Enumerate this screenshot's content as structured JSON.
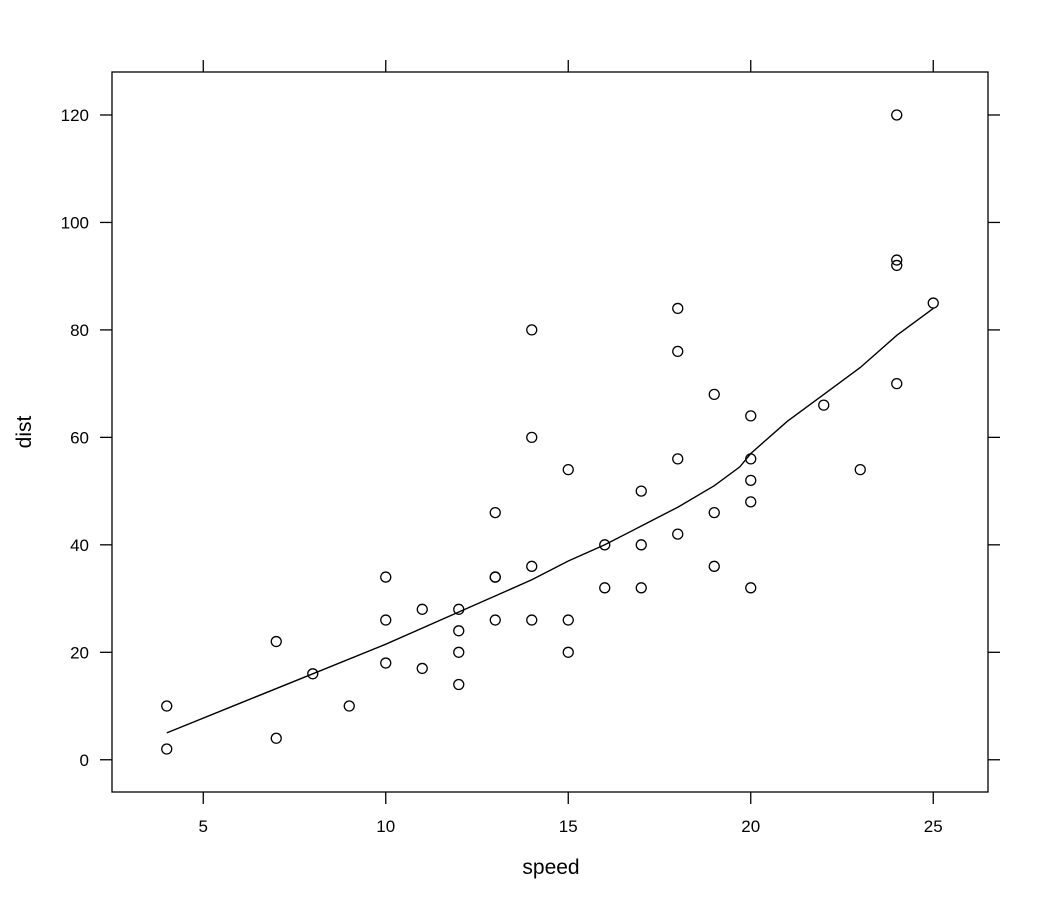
{
  "chart_data": {
    "type": "scatter",
    "title": "",
    "xlabel": "speed",
    "ylabel": "dist",
    "xlim": [
      2.5,
      26.5
    ],
    "ylim": [
      -6,
      128
    ],
    "x_ticks": [
      5,
      10,
      15,
      20,
      25
    ],
    "y_ticks": [
      0,
      20,
      40,
      60,
      80,
      100,
      120
    ],
    "x_tick_labels": [
      "5",
      "10",
      "15",
      "20",
      "25"
    ],
    "y_tick_labels": [
      "0",
      "20",
      "40",
      "60",
      "80",
      "100",
      "120"
    ],
    "grid": false,
    "legend": "none",
    "colors": {
      "points": "#000000",
      "line": "#000000",
      "frame": "#000000"
    },
    "series": [
      {
        "kind": "points",
        "x": [
          4,
          4,
          7,
          7,
          8,
          9,
          10,
          10,
          10,
          11,
          11,
          12,
          12,
          12,
          12,
          13,
          13,
          13,
          13,
          14,
          14,
          14,
          14,
          15,
          15,
          15,
          16,
          16,
          17,
          17,
          17,
          18,
          18,
          18,
          18,
          19,
          19,
          19,
          20,
          20,
          20,
          20,
          20,
          22,
          23,
          24,
          24,
          24,
          24,
          25
        ],
        "y": [
          2,
          10,
          4,
          22,
          16,
          10,
          18,
          26,
          34,
          17,
          28,
          14,
          20,
          24,
          28,
          26,
          34,
          34,
          46,
          26,
          36,
          60,
          80,
          20,
          26,
          54,
          32,
          40,
          32,
          40,
          50,
          42,
          56,
          76,
          84,
          36,
          46,
          68,
          32,
          48,
          52,
          56,
          64,
          66,
          54,
          70,
          92,
          93,
          120,
          85
        ]
      },
      {
        "kind": "smooth-line",
        "x": [
          4,
          6,
          8,
          10,
          12,
          14,
          15,
          16,
          17,
          18,
          19,
          19.7,
          20,
          21,
          22,
          23,
          24,
          25
        ],
        "y": [
          5,
          10.5,
          16,
          21.5,
          27.5,
          33.5,
          37,
          40,
          43.5,
          47,
          51,
          54.5,
          57,
          63,
          68,
          73,
          79,
          84
        ]
      }
    ]
  }
}
